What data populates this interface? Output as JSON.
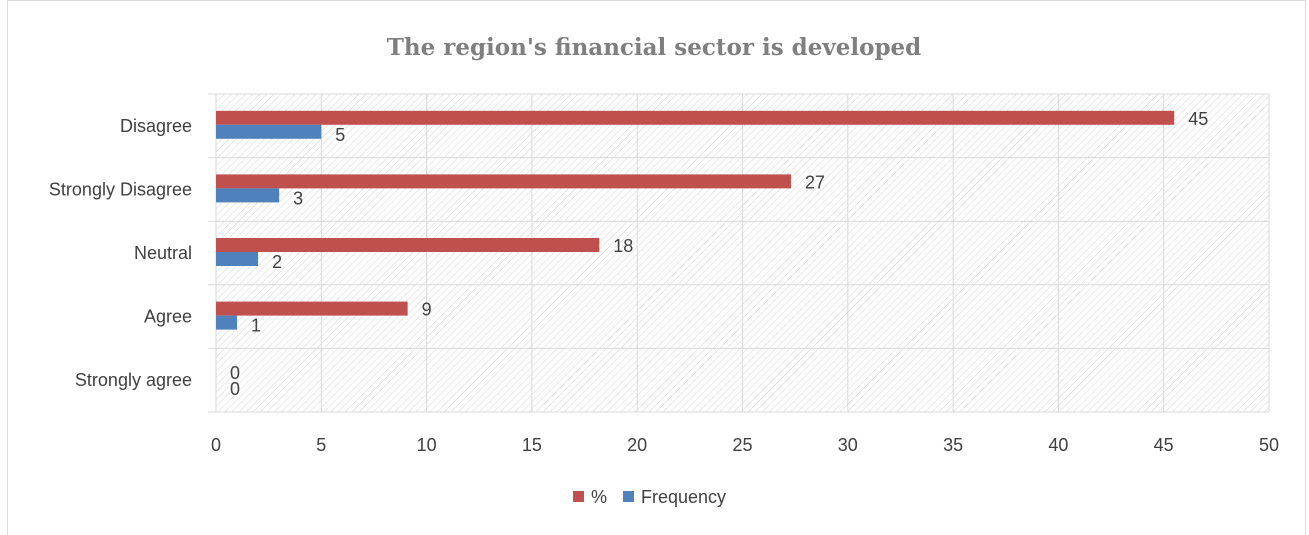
{
  "chart_data": {
    "type": "bar",
    "orientation": "horizontal",
    "title": "The region's financial sector is developed",
    "categories": [
      "Strongly agree",
      "Agree",
      "Neutral",
      "Strongly Disagree",
      "Disagree"
    ],
    "series": [
      {
        "name": "%",
        "values": [
          0,
          9.1,
          18.2,
          27.3,
          45.5
        ],
        "labels": [
          "0",
          "9",
          "18",
          "27",
          "45"
        ],
        "color": "#c0504d"
      },
      {
        "name": "Frequency",
        "values": [
          0,
          1,
          2,
          3,
          5
        ],
        "labels": [
          "0",
          "1",
          "2",
          "3",
          "5"
        ],
        "color": "#4f81bd"
      }
    ],
    "xlim": [
      0,
      50
    ],
    "xticks": [
      "0",
      "5",
      "10",
      "15",
      "20",
      "25",
      "30",
      "35",
      "40",
      "45",
      "50"
    ],
    "grid": true,
    "legend_position": "bottom",
    "plot_fill": "diagonal-hatch"
  }
}
